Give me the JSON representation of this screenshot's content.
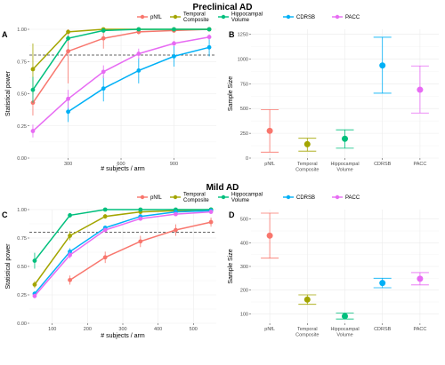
{
  "sections": [
    {
      "title": "Preclinical AD",
      "legend": [
        {
          "label": "pNfL",
          "color": "#F8766D"
        },
        {
          "label": "Temporal\nComposite",
          "color": "#A3A500"
        },
        {
          "label": "Hippocampal\nVolume",
          "color": "#00BF7D"
        },
        {
          "label": "CDRSB",
          "color": "#00B0F6"
        },
        {
          "label": "PACC",
          "color": "#E76BF3"
        }
      ]
    },
    {
      "title": "Mild AD",
      "legend": [
        {
          "label": "pNfL",
          "color": "#F8766D"
        },
        {
          "label": "Temporal\nComposite",
          "color": "#A3A500"
        },
        {
          "label": "Hippocampal\nVolume",
          "color": "#00BF7D"
        },
        {
          "label": "CDRSB",
          "color": "#00B0F6"
        },
        {
          "label": "PACC",
          "color": "#E76BF3"
        }
      ]
    }
  ],
  "chart_data": [
    {
      "panel": "A",
      "type": "line",
      "xlabel": "# subjects / arm",
      "ylabel": "Statistical power",
      "xlim": [
        80,
        1140
      ],
      "ylim": [
        0,
        1
      ],
      "xticks": [
        "300",
        "600",
        "900"
      ],
      "xtick_values": [
        300,
        600,
        900
      ],
      "yticks": [
        "0.00",
        "0.25",
        "0.50",
        "0.75",
        "1.00"
      ],
      "ytick_values": [
        0,
        0.25,
        0.5,
        0.75,
        1.0
      ],
      "hline": 0.8,
      "grid": true,
      "series": [
        {
          "name": "pNfL",
          "color": "#F8766D",
          "x": [
            100,
            300,
            500,
            700,
            900,
            1100
          ],
          "y": [
            0.43,
            0.83,
            0.93,
            0.98,
            0.99,
            1.0
          ],
          "err": [
            0.1,
            0.25,
            0.08,
            0.02,
            0.01,
            0.0
          ]
        },
        {
          "name": "Temporal Composite",
          "color": "#A3A500",
          "x": [
            100,
            300,
            500,
            700,
            900,
            1100
          ],
          "y": [
            0.69,
            0.98,
            1.0,
            1.0,
            1.0,
            1.0
          ],
          "err": [
            0.2,
            0.01,
            0.0,
            0.0,
            0.0,
            0.0
          ]
        },
        {
          "name": "Hippocampal Volume",
          "color": "#00BF7D",
          "x": [
            100,
            300,
            500,
            700,
            900,
            1100
          ],
          "y": [
            0.53,
            0.93,
            0.99,
            1.0,
            1.0,
            1.0
          ],
          "err": [
            0.1,
            0.02,
            0.01,
            0.0,
            0.0,
            0.0
          ]
        },
        {
          "name": "CDRSB",
          "color": "#00B0F6",
          "x": [
            300,
            500,
            700,
            900,
            1100
          ],
          "y": [
            0.36,
            0.54,
            0.68,
            0.79,
            0.86
          ],
          "err": [
            0.08,
            0.1,
            0.1,
            0.08,
            0.07
          ]
        },
        {
          "name": "PACC",
          "color": "#E76BF3",
          "x": [
            100,
            300,
            500,
            700,
            900,
            1100
          ],
          "y": [
            0.21,
            0.46,
            0.67,
            0.81,
            0.89,
            0.94
          ],
          "err": [
            0.05,
            0.07,
            0.05,
            0.04,
            0.02,
            0.02
          ]
        }
      ]
    },
    {
      "panel": "B",
      "type": "scatter",
      "xlabel": "",
      "ylabel": "Sample Size",
      "ylim": [
        0,
        1300
      ],
      "categories": [
        "pNfL",
        "Temporal\nComposite",
        "Hippocampal\nVolume",
        "CDRSB",
        "PACC"
      ],
      "yticks": [
        "0",
        "250",
        "500",
        "750",
        "1000",
        "1250"
      ],
      "ytick_values": [
        0,
        250,
        500,
        750,
        1000,
        1250
      ],
      "grid": true,
      "series": [
        {
          "name": "pNfL",
          "color": "#F8766D",
          "value": 275,
          "low": 60,
          "high": 490
        },
        {
          "name": "Temporal Composite",
          "color": "#A3A500",
          "value": 140,
          "low": 70,
          "high": 200
        },
        {
          "name": "Hippocampal Volume",
          "color": "#00BF7D",
          "value": 195,
          "low": 100,
          "high": 285
        },
        {
          "name": "CDRSB",
          "color": "#00B0F6",
          "value": 935,
          "low": 655,
          "high": 1220
        },
        {
          "name": "PACC",
          "color": "#E76BF3",
          "value": 690,
          "low": 455,
          "high": 930
        }
      ]
    },
    {
      "panel": "C",
      "type": "line",
      "xlabel": "# subjects / arm",
      "ylabel": "Statistical power",
      "xlim": [
        35,
        565
      ],
      "ylim": [
        0,
        1
      ],
      "xticks": [
        "100",
        "200",
        "300",
        "400",
        "500"
      ],
      "xtick_values": [
        100,
        200,
        300,
        400,
        500
      ],
      "yticks": [
        "0.00",
        "0.25",
        "0.50",
        "0.75",
        "1.00"
      ],
      "ytick_values": [
        0,
        0.25,
        0.5,
        0.75,
        1.0
      ],
      "hline": 0.8,
      "grid": true,
      "series": [
        {
          "name": "pNfL",
          "color": "#F8766D",
          "x": [
            150,
            250,
            350,
            450,
            550
          ],
          "y": [
            0.38,
            0.58,
            0.72,
            0.82,
            0.89
          ],
          "err": [
            0.04,
            0.05,
            0.05,
            0.05,
            0.04
          ]
        },
        {
          "name": "Temporal Composite",
          "color": "#A3A500",
          "x": [
            50,
            150,
            250,
            350,
            450,
            550
          ],
          "y": [
            0.34,
            0.77,
            0.94,
            0.98,
            0.99,
            1.0
          ],
          "err": [
            0.03,
            0.04,
            0.02,
            0.01,
            0.0,
            0.0
          ]
        },
        {
          "name": "Hippocampal Volume",
          "color": "#00BF7D",
          "x": [
            50,
            150,
            250,
            350,
            450,
            550
          ],
          "y": [
            0.55,
            0.95,
            1.0,
            1.0,
            1.0,
            1.0
          ],
          "err": [
            0.07,
            0.02,
            0.0,
            0.0,
            0.0,
            0.0
          ]
        },
        {
          "name": "CDRSB",
          "color": "#00B0F6",
          "x": [
            50,
            150,
            250,
            350,
            450,
            550
          ],
          "y": [
            0.26,
            0.63,
            0.84,
            0.94,
            0.98,
            0.99
          ],
          "err": [
            0.02,
            0.03,
            0.02,
            0.01,
            0.01,
            0.01
          ]
        },
        {
          "name": "PACC",
          "color": "#E76BF3",
          "x": [
            50,
            150,
            250,
            350,
            450,
            550
          ],
          "y": [
            0.24,
            0.6,
            0.82,
            0.92,
            0.96,
            0.98
          ],
          "err": [
            0.02,
            0.03,
            0.02,
            0.01,
            0.01,
            0.01
          ]
        }
      ]
    },
    {
      "panel": "D",
      "type": "scatter",
      "xlabel": "",
      "ylabel": "Sample Size",
      "ylim": [
        60,
        540
      ],
      "categories": [
        "pNfL",
        "Temporal\nComposite",
        "Hippocampal\nVolume",
        "CDRSB",
        "PACC"
      ],
      "yticks": [
        "100",
        "200",
        "300",
        "400",
        "500"
      ],
      "ytick_values": [
        100,
        200,
        300,
        400,
        500
      ],
      "grid": true,
      "series": [
        {
          "name": "pNfL",
          "color": "#F8766D",
          "value": 430,
          "low": 335,
          "high": 525
        },
        {
          "name": "Temporal Composite",
          "color": "#A3A500",
          "value": 160,
          "low": 140,
          "high": 180
        },
        {
          "name": "Hippocampal Volume",
          "color": "#00BF7D",
          "value": 90,
          "low": 78,
          "high": 103
        },
        {
          "name": "CDRSB",
          "color": "#00B0F6",
          "value": 230,
          "low": 210,
          "high": 250
        },
        {
          "name": "PACC",
          "color": "#E76BF3",
          "value": 248,
          "low": 222,
          "high": 274
        }
      ]
    }
  ]
}
